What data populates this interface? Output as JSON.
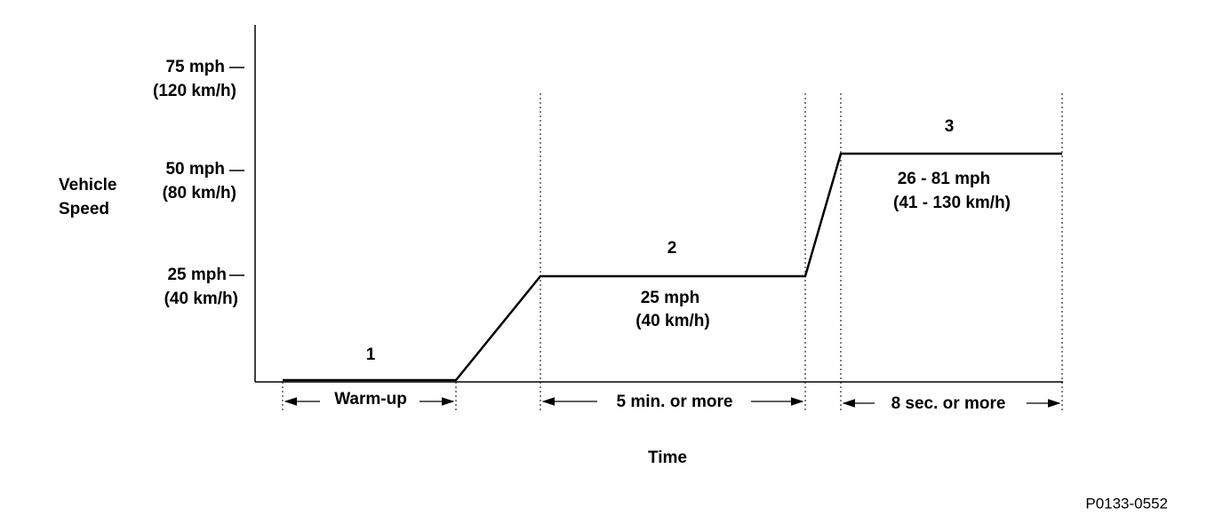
{
  "axis": {
    "y_label": [
      "Vehicle",
      "Speed"
    ],
    "x_label": "Time",
    "y_ticks": [
      {
        "mph": "75 mph",
        "kmh": "(120 km/h)"
      },
      {
        "mph": "50 mph",
        "kmh": "(80 km/h)"
      },
      {
        "mph": "25 mph",
        "kmh": "(40 km/h)"
      }
    ]
  },
  "phases": [
    {
      "number": "1",
      "duration": "Warm-up"
    },
    {
      "number": "2",
      "speed": [
        "25 mph",
        "(40 km/h)"
      ],
      "duration": "5 min. or more"
    },
    {
      "number": "3",
      "speed": [
        "26 - 81 mph",
        "(41 - 130 km/h)"
      ],
      "duration": "8 sec. or more"
    }
  ],
  "figure_id": "P0133-0552"
}
